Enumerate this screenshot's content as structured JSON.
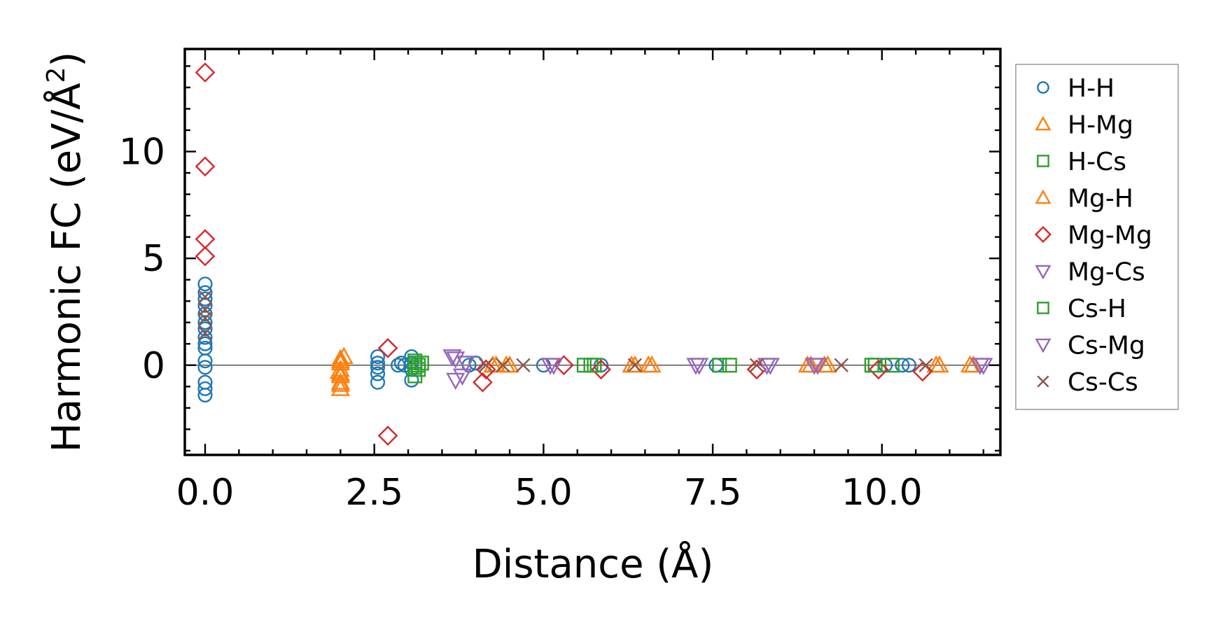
{
  "chart_data": {
    "type": "scatter",
    "title": "",
    "xlabel": "Distance (Å)",
    "ylabel": "Harmonic FC (eV/Å²)",
    "ylabel_parts": {
      "main": "Harmonic FC (eV/Å",
      "sup": "2",
      "close": ")"
    },
    "xlim": [
      -0.3,
      11.75
    ],
    "ylim": [
      -4.2,
      14.8
    ],
    "xticks": [
      0.0,
      2.5,
      5.0,
      7.5,
      10.0
    ],
    "xtick_labels": [
      "0.0",
      "2.5",
      "5.0",
      "7.5",
      "10.0"
    ],
    "yticks": [
      0,
      5,
      10
    ],
    "ytick_labels": [
      "0",
      "5",
      "10"
    ],
    "grid": false,
    "zero_line": true,
    "legend_position": "outside-right",
    "series": [
      {
        "name": "H-H",
        "marker": "circle",
        "color": "#1f77b4",
        "points": [
          [
            0,
            -1.4
          ],
          [
            0,
            -1.1
          ],
          [
            0,
            -0.8
          ],
          [
            0,
            -0.1
          ],
          [
            0,
            0.2
          ],
          [
            0,
            0.8
          ],
          [
            0,
            1.0
          ],
          [
            0,
            1.3
          ],
          [
            0,
            1.7
          ],
          [
            0,
            2.0
          ],
          [
            0,
            2.4
          ],
          [
            0,
            2.8
          ],
          [
            0,
            3.1
          ],
          [
            0,
            3.4
          ],
          [
            0,
            3.8
          ],
          [
            2.55,
            -0.8
          ],
          [
            2.55,
            -0.4
          ],
          [
            2.55,
            -0.1
          ],
          [
            2.55,
            0.1
          ],
          [
            2.55,
            0.4
          ],
          [
            2.85,
            0.0
          ],
          [
            2.9,
            0.1
          ],
          [
            2.95,
            0.0
          ],
          [
            3.05,
            0.4
          ],
          [
            3.05,
            0.1
          ],
          [
            3.05,
            -0.2
          ],
          [
            3.05,
            -0.7
          ],
          [
            3.9,
            0.0
          ],
          [
            4.0,
            0.1
          ],
          [
            5.0,
            0.0
          ],
          [
            5.85,
            0.0
          ],
          [
            7.55,
            0.0
          ],
          [
            10.05,
            0.0
          ],
          [
            10.3,
            0.0
          ],
          [
            10.4,
            0.0
          ]
        ]
      },
      {
        "name": "H-Mg",
        "marker": "triangle-up",
        "color": "#ff7f0e",
        "points": [
          [
            2.0,
            0.3
          ],
          [
            2.0,
            0.1
          ],
          [
            2.0,
            -0.2
          ],
          [
            2.0,
            -0.5
          ],
          [
            2.0,
            -0.8
          ],
          [
            2.0,
            -1.1
          ],
          [
            2.05,
            0.4
          ],
          [
            1.98,
            -0.3
          ],
          [
            4.25,
            0.0
          ],
          [
            4.5,
            0.0
          ],
          [
            6.3,
            0.0
          ],
          [
            6.55,
            0.0
          ],
          [
            8.9,
            0.0
          ],
          [
            9.15,
            0.0
          ],
          [
            10.85,
            0.0
          ],
          [
            11.35,
            0.0
          ]
        ]
      },
      {
        "name": "H-Cs",
        "marker": "square",
        "color": "#2ca02c",
        "points": [
          [
            3.1,
            0.2
          ],
          [
            3.1,
            -0.1
          ],
          [
            3.1,
            -0.5
          ],
          [
            3.15,
            0.0
          ],
          [
            3.2,
            0.1
          ],
          [
            5.6,
            0.0
          ],
          [
            5.75,
            0.0
          ],
          [
            7.75,
            0.0
          ],
          [
            9.85,
            0.0
          ],
          [
            10.15,
            0.0
          ]
        ]
      },
      {
        "name": "Mg-H",
        "marker": "triangle-up",
        "color": "#ff7f0e",
        "points": [
          [
            2.0,
            0.2
          ],
          [
            2.0,
            -0.4
          ],
          [
            2.0,
            -0.9
          ],
          [
            4.3,
            0.0
          ],
          [
            4.45,
            0.0
          ],
          [
            6.35,
            0.0
          ],
          [
            6.6,
            0.0
          ],
          [
            8.95,
            0.0
          ],
          [
            9.2,
            0.0
          ],
          [
            10.8,
            0.0
          ],
          [
            11.3,
            0.0
          ]
        ]
      },
      {
        "name": "Mg-Mg",
        "marker": "diamond",
        "color": "#d62728",
        "points": [
          [
            0,
            13.7
          ],
          [
            0,
            9.3
          ],
          [
            0,
            5.9
          ],
          [
            0,
            5.1
          ],
          [
            2.7,
            0.8
          ],
          [
            2.7,
            -3.3
          ],
          [
            4.1,
            -0.8
          ],
          [
            4.15,
            -0.2
          ],
          [
            5.3,
            0.0
          ],
          [
            5.85,
            -0.2
          ],
          [
            8.15,
            -0.2
          ],
          [
            9.95,
            -0.2
          ],
          [
            10.6,
            -0.3
          ]
        ]
      },
      {
        "name": "Mg-Cs",
        "marker": "triangle-down",
        "color": "#9467bd",
        "points": [
          [
            3.65,
            0.4
          ],
          [
            3.7,
            -0.7
          ],
          [
            3.85,
            0.1
          ],
          [
            5.1,
            0.0
          ],
          [
            7.25,
            0.0
          ],
          [
            8.35,
            0.0
          ],
          [
            9.0,
            0.0
          ],
          [
            11.5,
            0.0
          ]
        ]
      },
      {
        "name": "Cs-H",
        "marker": "square",
        "color": "#2ca02c",
        "points": [
          [
            3.1,
            0.0
          ],
          [
            3.15,
            -0.2
          ],
          [
            5.7,
            0.0
          ],
          [
            7.6,
            0.0
          ],
          [
            9.9,
            0.0
          ]
        ]
      },
      {
        "name": "Cs-Mg",
        "marker": "triangle-down",
        "color": "#9467bd",
        "points": [
          [
            3.7,
            0.3
          ],
          [
            3.8,
            -0.5
          ],
          [
            5.15,
            0.0
          ],
          [
            7.3,
            0.0
          ],
          [
            8.3,
            0.0
          ],
          [
            9.05,
            0.0
          ],
          [
            11.45,
            0.0
          ]
        ]
      },
      {
        "name": "Cs-Cs",
        "marker": "x",
        "color": "#8c564b",
        "points": [
          [
            0,
            1.5
          ],
          [
            0,
            2.2
          ],
          [
            0,
            2.6
          ],
          [
            0,
            3.2
          ],
          [
            4.15,
            0.0
          ],
          [
            4.4,
            0.0
          ],
          [
            4.7,
            0.0
          ],
          [
            6.35,
            0.0
          ],
          [
            8.15,
            0.0
          ],
          [
            9.4,
            0.0
          ],
          [
            10.65,
            0.0
          ]
        ]
      }
    ]
  }
}
